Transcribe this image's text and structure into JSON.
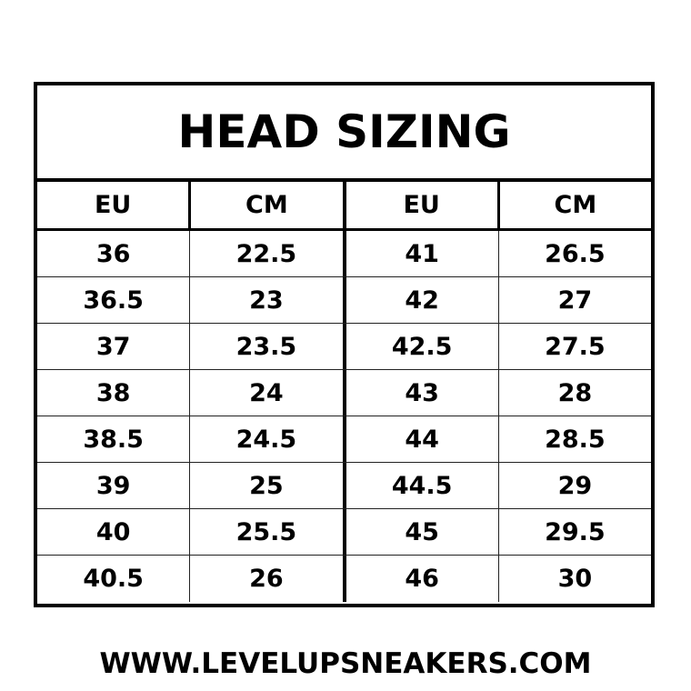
{
  "title": "HEAD SIZING",
  "headers": [
    "EU",
    "CM",
    "EU",
    "CM"
  ],
  "rows": [
    [
      "36",
      "22.5",
      "41",
      "26.5"
    ],
    [
      "36.5",
      "23",
      "42",
      "27"
    ],
    [
      "37",
      "23.5",
      "42.5",
      "27.5"
    ],
    [
      "38",
      "24",
      "43",
      "28"
    ],
    [
      "38.5",
      "24.5",
      "44",
      "28.5"
    ],
    [
      "39",
      "25",
      "44.5",
      "29"
    ],
    [
      "40",
      "25.5",
      "45",
      "29.5"
    ],
    [
      "40.5",
      "26",
      "46",
      "30"
    ]
  ],
  "footer": "WWW.LEVELUPSNEAKERS.COM"
}
